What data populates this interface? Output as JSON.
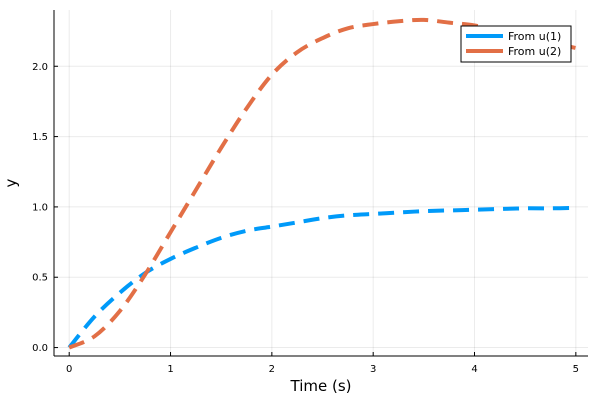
{
  "chart_data": {
    "type": "line",
    "title": "",
    "xlabel": "Time (s)",
    "ylabel": "y",
    "xlim": [
      -0.15,
      5.12
    ],
    "ylim": [
      -0.06,
      2.4
    ],
    "xticks": [
      0,
      1,
      2,
      3,
      4,
      5
    ],
    "xtick_labels": [
      "0",
      "1",
      "2",
      "3",
      "4",
      "5"
    ],
    "yticks": [
      0,
      0.5,
      1,
      1.5,
      2
    ],
    "ytick_labels": [
      "0.0",
      "0.5",
      "1.0",
      "1.5",
      "2.0"
    ],
    "grid": true,
    "legend_position": "top-right",
    "line_style": "dashed",
    "series": [
      {
        "name": "From u(1)",
        "color": "#009af9",
        "x": [
          0,
          0.25,
          0.5,
          0.75,
          1,
          1.25,
          1.5,
          1.75,
          2,
          2.25,
          2.5,
          2.75,
          3,
          3.25,
          3.5,
          3.75,
          4,
          4.25,
          4.5,
          4.75,
          5
        ],
        "y": [
          0,
          0.22,
          0.39,
          0.53,
          0.63,
          0.71,
          0.78,
          0.83,
          0.86,
          0.89,
          0.92,
          0.94,
          0.95,
          0.96,
          0.97,
          0.975,
          0.98,
          0.985,
          0.99,
          0.99,
          0.993
        ]
      },
      {
        "name": "From u(2)",
        "color": "#e26f46",
        "x": [
          0,
          0.25,
          0.5,
          0.75,
          1,
          1.25,
          1.5,
          1.75,
          2,
          2.25,
          2.5,
          2.75,
          3,
          3.25,
          3.5,
          3.75,
          4,
          4.25,
          4.5,
          4.75,
          5
        ],
        "y": [
          0,
          0.08,
          0.26,
          0.52,
          0.82,
          1.12,
          1.42,
          1.7,
          1.94,
          2.1,
          2.2,
          2.27,
          2.3,
          2.32,
          2.33,
          2.31,
          2.29,
          2.25,
          2.21,
          2.17,
          2.13
        ]
      }
    ]
  }
}
